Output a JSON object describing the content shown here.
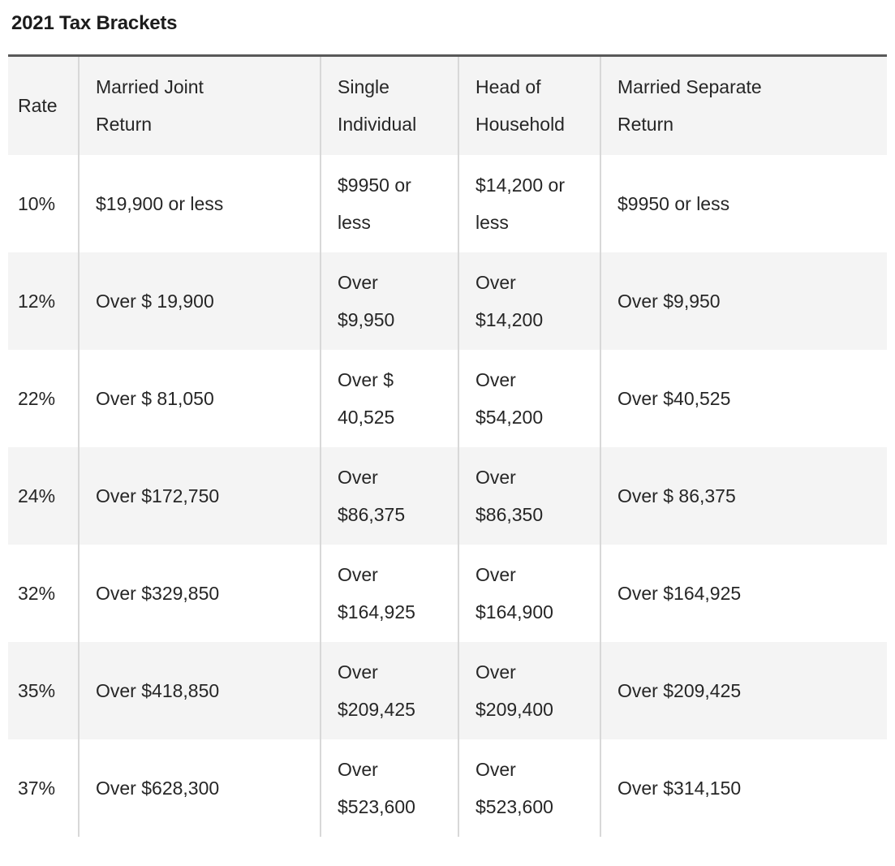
{
  "page": {
    "title": "2021 Tax Brackets"
  },
  "table": {
    "columns": [
      {
        "key": "rate",
        "label": "Rate"
      },
      {
        "key": "married_joint",
        "label": "Married Joint\nReturn"
      },
      {
        "key": "single",
        "label": "Single\nIndividual"
      },
      {
        "key": "head_of_household",
        "label": "Head of\nHousehold"
      },
      {
        "key": "married_separate",
        "label": "Married Separate\nReturn"
      }
    ],
    "rows": [
      {
        "rate": "10%",
        "married_joint": "$19,900 or less",
        "single": "$9950 or\nless",
        "head_of_household": "$14,200 or\nless",
        "married_separate": "$9950 or less"
      },
      {
        "rate": "12%",
        "married_joint": "Over $ 19,900",
        "single": "Over\n$9,950",
        "head_of_household": "Over\n$14,200",
        "married_separate": "Over $9,950"
      },
      {
        "rate": "22%",
        "married_joint": "Over $ 81,050",
        "single": "Over $\n40,525",
        "head_of_household": "Over\n$54,200",
        "married_separate": "Over $40,525"
      },
      {
        "rate": "24%",
        "married_joint": "Over $172,750",
        "single": "Over\n$86,375",
        "head_of_household": "Over\n$86,350",
        "married_separate": "Over $ 86,375"
      },
      {
        "rate": "32%",
        "married_joint": "Over $329,850",
        "single": "Over\n$164,925",
        "head_of_household": "Over\n$164,900",
        "married_separate": "Over $164,925"
      },
      {
        "rate": "35%",
        "married_joint": "Over $418,850",
        "single": "Over\n$209,425",
        "head_of_household": "Over\n$209,400",
        "married_separate": "Over $209,425"
      },
      {
        "rate": "37%",
        "married_joint": "Over $628,300",
        "single": "Over\n$523,600",
        "head_of_household": "Over\n$523,600",
        "married_separate": "Over $314,150"
      }
    ]
  },
  "colors": {
    "table_top_border": "#595959",
    "row_stripe": "#f4f4f4",
    "column_separator": "#d8d8d8",
    "bottom_divider": "#dadadd",
    "text": "#262626"
  }
}
